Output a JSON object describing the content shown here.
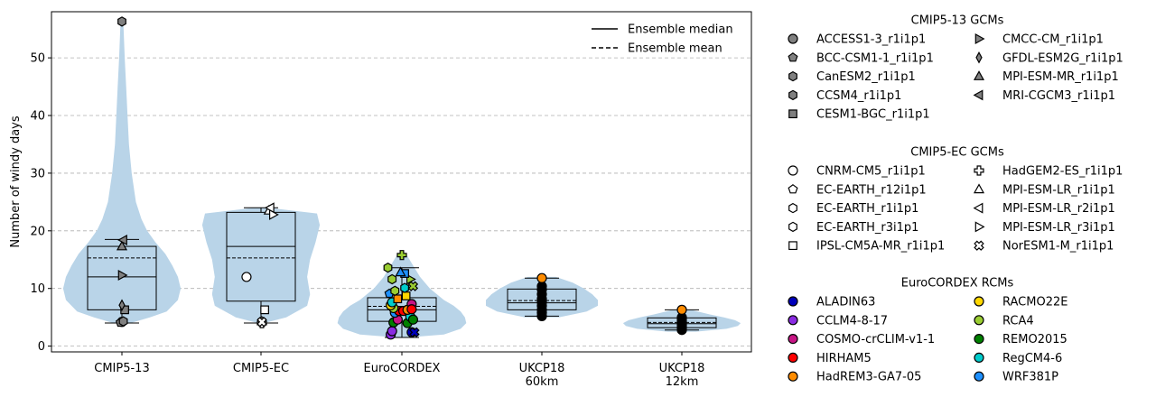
{
  "chart_data": {
    "type": "violin-box-scatter",
    "ylabel": "Number of windy days",
    "ylim": [
      -1,
      58
    ],
    "yticks": [
      0,
      10,
      20,
      30,
      40,
      50
    ],
    "grid": "y-dashed",
    "categories": [
      {
        "lines": [
          "CMIP5-13"
        ]
      },
      {
        "lines": [
          "CMIP5-EC"
        ]
      },
      {
        "lines": [
          "EuroCORDEX"
        ]
      },
      {
        "lines": [
          "UKCP18",
          "60km"
        ]
      },
      {
        "lines": [
          "UKCP18",
          "12km"
        ]
      }
    ],
    "violins": [
      {
        "profile": [
          [
            4.0,
            0.06
          ],
          [
            5,
            0.2
          ],
          [
            6,
            0.32
          ],
          [
            8,
            0.4
          ],
          [
            10,
            0.42
          ],
          [
            12,
            0.4
          ],
          [
            14,
            0.36
          ],
          [
            16,
            0.31
          ],
          [
            18,
            0.24
          ],
          [
            20,
            0.18
          ],
          [
            22,
            0.14
          ],
          [
            25,
            0.1
          ],
          [
            30,
            0.07
          ],
          [
            35,
            0.05
          ],
          [
            40,
            0.04
          ],
          [
            45,
            0.03
          ],
          [
            50,
            0.02
          ],
          [
            56,
            0.01
          ]
        ]
      },
      {
        "profile": [
          [
            4.0,
            0.02
          ],
          [
            5,
            0.18
          ],
          [
            7,
            0.33
          ],
          [
            9,
            0.35
          ],
          [
            12,
            0.33
          ],
          [
            15,
            0.35
          ],
          [
            18,
            0.39
          ],
          [
            21,
            0.42
          ],
          [
            23,
            0.4
          ],
          [
            24,
            0.05
          ]
        ]
      },
      {
        "profile": [
          [
            1.5,
            0.04
          ],
          [
            2,
            0.3
          ],
          [
            3,
            0.42
          ],
          [
            4,
            0.46
          ],
          [
            5,
            0.45
          ],
          [
            6,
            0.42
          ],
          [
            7,
            0.37
          ],
          [
            8,
            0.3
          ],
          [
            10,
            0.2
          ],
          [
            12,
            0.13
          ],
          [
            14,
            0.08
          ],
          [
            16,
            0.03
          ]
        ]
      },
      {
        "profile": [
          [
            5.0,
            0.12
          ],
          [
            6,
            0.32
          ],
          [
            7,
            0.4
          ],
          [
            8,
            0.4
          ],
          [
            9,
            0.36
          ],
          [
            10,
            0.3
          ],
          [
            11,
            0.22
          ],
          [
            12,
            0.1
          ]
        ]
      },
      {
        "profile": [
          [
            2.5,
            0.1
          ],
          [
            3,
            0.32
          ],
          [
            3.5,
            0.4
          ],
          [
            4,
            0.42
          ],
          [
            4.5,
            0.38
          ],
          [
            5,
            0.3
          ],
          [
            5.5,
            0.2
          ],
          [
            6.2,
            0.08
          ]
        ]
      }
    ],
    "boxes": [
      {
        "whislo": 4.0,
        "q1": 6.3,
        "median": 12.0,
        "mean": 15.3,
        "q3": 17.3,
        "whishi": 18.5
      },
      {
        "whislo": 4.0,
        "q1": 7.8,
        "median": 17.3,
        "mean": 15.3,
        "q3": 23.2,
        "whishi": 24.0
      },
      {
        "whislo": 1.5,
        "q1": 4.3,
        "median": 6.3,
        "mean": 6.9,
        "q3": 8.4,
        "whishi": 13.6
      },
      {
        "whislo": 5.2,
        "q1": 6.3,
        "median": 7.5,
        "mean": 7.9,
        "q3": 9.9,
        "whishi": 11.8
      },
      {
        "whislo": 2.8,
        "q1": 3.2,
        "median": 3.9,
        "mean": 4.1,
        "q3": 4.9,
        "whishi": 6.3
      }
    ],
    "markers": {
      "cmip5_13": [
        {
          "label": "ACCESS1-3_r1i1p1",
          "shape": "circle",
          "fill": "#808080",
          "x": 1.0,
          "y": 4.2
        },
        {
          "label": "BCC-CSM1-1_r1i1p1",
          "shape": "pentagon",
          "fill": "#808080",
          "x": 0.99,
          "y": 4.1
        },
        {
          "label": "CanESM2_r1i1p1",
          "shape": "hexagon",
          "fill": "#808080",
          "x": 1.0,
          "y": 56.3
        },
        {
          "label": "CCSM4_r1i1p1",
          "shape": "hexagon",
          "fill": "#808080",
          "x": 1.01,
          "y": 4.3
        },
        {
          "label": "CESM1-BGC_r1i1p1",
          "shape": "square",
          "fill": "#808080",
          "x": 1.02,
          "y": 6.3
        },
        {
          "label": "CMCC-CM_r1i1p1",
          "shape": "tri-right",
          "fill": "#808080",
          "x": 1.0,
          "y": 12.3
        },
        {
          "label": "GFDL-ESM2G_r1i1p1",
          "shape": "thin-diamond",
          "fill": "#808080",
          "x": 1.0,
          "y": 7.1
        },
        {
          "label": "MPI-ESM-MR_r1i1p1",
          "shape": "tri-up",
          "fill": "#808080",
          "x": 1.0,
          "y": 17.3
        },
        {
          "label": "MRI-CGCM3_r1i1p1",
          "shape": "tri-left",
          "fill": "#808080",
          "x": 1.01,
          "y": 18.4
        }
      ],
      "cmip5_ec": [
        {
          "label": "CNRM-CM5_r1i1p1",
          "shape": "circle",
          "fill": "#ffffff",
          "x": 1.89,
          "y": 12.0
        },
        {
          "label": "EC-EARTH_r12i1p1",
          "shape": "pentagon",
          "fill": "#ffffff",
          "x": 2.0,
          "y": 4.1
        },
        {
          "label": "EC-EARTH_r1i1p1",
          "shape": "hexagon",
          "fill": "#ffffff",
          "x": 2.0,
          "y": 4.2
        },
        {
          "label": "EC-EARTH_r3i1p1",
          "shape": "hexagon",
          "fill": "#ffffff",
          "x": 2.0,
          "y": 4.3
        },
        {
          "label": "IPSL-CM5A-MR_r1i1p1",
          "shape": "square",
          "fill": "#ffffff",
          "x": 2.02,
          "y": 6.3
        },
        {
          "label": "HadGEM2-ES_r1i1p1",
          "shape": "plus",
          "fill": "#ffffff",
          "x": 2.0,
          "y": 4.0
        },
        {
          "label": "MPI-ESM-LR_r1i1p1",
          "shape": "tri-up",
          "fill": "#ffffff",
          "x": 2.05,
          "y": 23.5
        },
        {
          "label": "MPI-ESM-LR_r2i1p1",
          "shape": "tri-left",
          "fill": "#ffffff",
          "x": 2.06,
          "y": 24.0
        },
        {
          "label": "MPI-ESM-LR_r3i1p1",
          "shape": "tri-right",
          "fill": "#ffffff",
          "x": 2.08,
          "y": 22.8
        },
        {
          "label": "NorESM1-M_r1i1p1",
          "shape": "x",
          "fill": "#ffffff",
          "x": 2.0,
          "y": 4.2
        }
      ],
      "eurocordex": [
        {
          "shape": "circle",
          "fill": "#8a2be2",
          "x": 2.92,
          "y": 2.0
        },
        {
          "shape": "circle",
          "fill": "#8a2be2",
          "x": 2.93,
          "y": 2.6
        },
        {
          "shape": "circle",
          "fill": "#0000bb",
          "x": 3.07,
          "y": 2.4
        },
        {
          "shape": "x",
          "fill": "#0000bb",
          "x": 3.09,
          "y": 2.4
        },
        {
          "shape": "circle",
          "fill": "#008000",
          "x": 2.94,
          "y": 4.1
        },
        {
          "shape": "circle",
          "fill": "#c71585",
          "x": 2.97,
          "y": 4.6
        },
        {
          "shape": "circle",
          "fill": "#008000",
          "x": 3.04,
          "y": 4.0
        },
        {
          "shape": "circle",
          "fill": "#00cccc",
          "x": 3.06,
          "y": 5.1
        },
        {
          "shape": "circle",
          "fill": "#1e90ff",
          "x": 2.95,
          "y": 5.8
        },
        {
          "shape": "circle",
          "fill": "#ff0000",
          "x": 2.98,
          "y": 6.1
        },
        {
          "shape": "circle",
          "fill": "#ff0000",
          "x": 3.01,
          "y": 6.1
        },
        {
          "shape": "circle",
          "fill": "#ff8c00",
          "x": 3.04,
          "y": 6.3
        },
        {
          "shape": "circle",
          "fill": "#9acd32",
          "x": 2.94,
          "y": 6.6
        },
        {
          "shape": "circle",
          "fill": "#ffd700",
          "x": 2.92,
          "y": 7.1
        },
        {
          "shape": "circle",
          "fill": "#00cccc",
          "x": 2.93,
          "y": 7.6
        },
        {
          "shape": "circle",
          "fill": "#c71585",
          "x": 3.07,
          "y": 7.3
        },
        {
          "shape": "square",
          "fill": "#ff8c00",
          "x": 2.97,
          "y": 8.2
        },
        {
          "shape": "square",
          "fill": "#ffd700",
          "x": 3.03,
          "y": 8.7
        },
        {
          "shape": "pentagon",
          "fill": "#1e90ff",
          "x": 2.91,
          "y": 9.1
        },
        {
          "shape": "hexagon",
          "fill": "#9acd32",
          "x": 2.95,
          "y": 9.6
        },
        {
          "shape": "hexagon",
          "fill": "#00cccc",
          "x": 3.02,
          "y": 10.1
        },
        {
          "shape": "x",
          "fill": "#9acd32",
          "x": 3.08,
          "y": 10.4
        },
        {
          "shape": "tri-right",
          "fill": "#9acd32",
          "x": 3.06,
          "y": 11.6
        },
        {
          "shape": "hexagon",
          "fill": "#9acd32",
          "x": 2.93,
          "y": 11.6
        },
        {
          "shape": "square",
          "fill": "#1e90ff",
          "x": 3.02,
          "y": 12.6
        },
        {
          "shape": "tri-up",
          "fill": "#1e90ff",
          "x": 2.99,
          "y": 12.8
        },
        {
          "shape": "hexagon",
          "fill": "#9acd32",
          "x": 2.9,
          "y": 13.6
        },
        {
          "shape": "plus",
          "fill": "#9acd32",
          "x": 3.0,
          "y": 15.8
        },
        {
          "shape": "circle",
          "fill": "#008000",
          "x": 3.08,
          "y": 4.6
        },
        {
          "shape": "circle",
          "fill": "#ff0000",
          "x": 3.07,
          "y": 6.4
        }
      ],
      "ukcp60": [
        {
          "shape": "circle",
          "fill": "#000000",
          "x": 4.0,
          "y": 5.2
        },
        {
          "shape": "circle",
          "fill": "#000000",
          "x": 4.0,
          "y": 5.8
        },
        {
          "shape": "circle",
          "fill": "#000000",
          "x": 4.0,
          "y": 6.3
        },
        {
          "shape": "circle",
          "fill": "#000000",
          "x": 4.0,
          "y": 7.0
        },
        {
          "shape": "circle",
          "fill": "#000000",
          "x": 4.0,
          "y": 7.6
        },
        {
          "shape": "circle",
          "fill": "#000000",
          "x": 4.0,
          "y": 8.2
        },
        {
          "shape": "circle",
          "fill": "#000000",
          "x": 4.0,
          "y": 9.0
        },
        {
          "shape": "circle",
          "fill": "#000000",
          "x": 4.0,
          "y": 9.8
        },
        {
          "shape": "circle",
          "fill": "#000000",
          "x": 4.0,
          "y": 10.4
        },
        {
          "shape": "circle",
          "fill": "#ff8c00",
          "x": 4.0,
          "y": 11.8
        }
      ],
      "ukcp12": [
        {
          "shape": "circle",
          "fill": "#000000",
          "x": 5.0,
          "y": 2.8
        },
        {
          "shape": "circle",
          "fill": "#000000",
          "x": 5.0,
          "y": 3.1
        },
        {
          "shape": "circle",
          "fill": "#000000",
          "x": 5.0,
          "y": 3.4
        },
        {
          "shape": "circle",
          "fill": "#000000",
          "x": 5.0,
          "y": 3.7
        },
        {
          "shape": "circle",
          "fill": "#000000",
          "x": 5.0,
          "y": 4.0
        },
        {
          "shape": "circle",
          "fill": "#000000",
          "x": 5.0,
          "y": 4.3
        },
        {
          "shape": "circle",
          "fill": "#000000",
          "x": 5.0,
          "y": 4.7
        },
        {
          "shape": "circle",
          "fill": "#000000",
          "x": 5.0,
          "y": 5.0
        },
        {
          "shape": "circle",
          "fill": "#ff8c00",
          "x": 5.0,
          "y": 6.3
        }
      ]
    },
    "line_legend": [
      {
        "label": "Ensemble median",
        "style": "solid"
      },
      {
        "label": "Ensemble mean",
        "style": "dashed"
      }
    ],
    "legend_groups": [
      {
        "title": "CMIP5-13 GCMs",
        "columns": [
          [
            {
              "label": "ACCESS1-3_r1i1p1",
              "shape": "circle",
              "fill": "#808080"
            },
            {
              "label": "BCC-CSM1-1_r1i1p1",
              "shape": "pentagon",
              "fill": "#808080"
            },
            {
              "label": "CanESM2_r1i1p1",
              "shape": "hexagon",
              "fill": "#808080"
            },
            {
              "label": "CCSM4_r1i1p1",
              "shape": "hexagon",
              "fill": "#808080"
            },
            {
              "label": "CESM1-BGC_r1i1p1",
              "shape": "square",
              "fill": "#808080"
            }
          ],
          [
            {
              "label": "CMCC-CM_r1i1p1",
              "shape": "tri-right",
              "fill": "#808080"
            },
            {
              "label": "GFDL-ESM2G_r1i1p1",
              "shape": "thin-diamond",
              "fill": "#808080"
            },
            {
              "label": "MPI-ESM-MR_r1i1p1",
              "shape": "tri-up",
              "fill": "#808080"
            },
            {
              "label": "MRI-CGCM3_r1i1p1",
              "shape": "tri-left",
              "fill": "#808080"
            }
          ]
        ]
      },
      {
        "title": "CMIP5-EC GCMs",
        "columns": [
          [
            {
              "label": "CNRM-CM5_r1i1p1",
              "shape": "circle",
              "fill": "#ffffff"
            },
            {
              "label": "EC-EARTH_r12i1p1",
              "shape": "pentagon",
              "fill": "#ffffff"
            },
            {
              "label": "EC-EARTH_r1i1p1",
              "shape": "hexagon",
              "fill": "#ffffff"
            },
            {
              "label": "EC-EARTH_r3i1p1",
              "shape": "hexagon",
              "fill": "#ffffff"
            },
            {
              "label": "IPSL-CM5A-MR_r1i1p1",
              "shape": "square",
              "fill": "#ffffff"
            }
          ],
          [
            {
              "label": "HadGEM2-ES_r1i1p1",
              "shape": "plus",
              "fill": "#ffffff"
            },
            {
              "label": "MPI-ESM-LR_r1i1p1",
              "shape": "tri-up",
              "fill": "#ffffff"
            },
            {
              "label": "MPI-ESM-LR_r2i1p1",
              "shape": "tri-left",
              "fill": "#ffffff"
            },
            {
              "label": "MPI-ESM-LR_r3i1p1",
              "shape": "tri-right",
              "fill": "#ffffff"
            },
            {
              "label": "NorESM1-M_r1i1p1",
              "shape": "x",
              "fill": "#ffffff"
            }
          ]
        ]
      },
      {
        "title": "EuroCORDEX RCMs",
        "columns": [
          [
            {
              "label": "ALADIN63",
              "shape": "circle",
              "fill": "#0000bb"
            },
            {
              "label": "CCLM4-8-17",
              "shape": "circle",
              "fill": "#8a2be2"
            },
            {
              "label": "COSMO-crCLIM-v1-1",
              "shape": "circle",
              "fill": "#c71585"
            },
            {
              "label": "HIRHAM5",
              "shape": "circle",
              "fill": "#ff0000"
            },
            {
              "label": "HadREM3-GA7-05",
              "shape": "circle",
              "fill": "#ff8c00"
            }
          ],
          [
            {
              "label": "RACMO22E",
              "shape": "circle",
              "fill": "#ffd700"
            },
            {
              "label": "RCA4",
              "shape": "circle",
              "fill": "#9acd32"
            },
            {
              "label": "REMO2015",
              "shape": "circle",
              "fill": "#008000"
            },
            {
              "label": "RegCM4-6",
              "shape": "circle",
              "fill": "#00cccc"
            },
            {
              "label": "WRF381P",
              "shape": "circle",
              "fill": "#1e90ff"
            }
          ]
        ]
      }
    ],
    "colors": {
      "violin": "#b9d4e8",
      "grid": "#b0b0b0"
    }
  }
}
